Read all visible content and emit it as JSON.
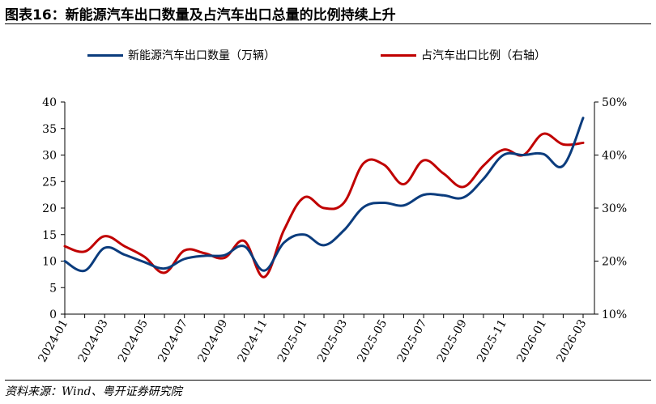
{
  "figure": {
    "title": "图表16：新能源汽车出口数量及占汽车出口总量的比例持续上升",
    "source": "资料来源：Wind、粤开证券研究院"
  },
  "colors": {
    "series_left": "#0b3c7d",
    "series_right": "#c00000"
  },
  "chart_data": {
    "type": "line",
    "title": "",
    "x": [
      "2024-01",
      "2024-02",
      "2024-03",
      "2024-04",
      "2024-05",
      "2024-06",
      "2024-07",
      "2024-08",
      "2024-09",
      "2024-10",
      "2024-11",
      "2024-12",
      "2025-01",
      "2025-02",
      "2025-03",
      "2025-04",
      "2025-05",
      "2025-06",
      "2025-07",
      "2025-08",
      "2025-09",
      "2025-10",
      "2025-11",
      "2025-12",
      "2026-01",
      "2026-02",
      "2026-03"
    ],
    "x_tick_labels": [
      "2024-01",
      "2024-03",
      "2024-05",
      "2024-07",
      "2024-09",
      "2024-11",
      "2025-01",
      "2025-03",
      "2025-05",
      "2025-07",
      "2025-09",
      "2025-11",
      "2026-01",
      "2026-03"
    ],
    "series": [
      {
        "name": "新能源汽车出口数量（万辆）",
        "axis": "left",
        "color": "#0b3c7d",
        "values": [
          10.0,
          8.2,
          12.5,
          11.2,
          9.8,
          8.6,
          10.4,
          11.0,
          11.1,
          12.8,
          8.2,
          13.5,
          15.0,
          13.0,
          15.8,
          20.2,
          21.0,
          20.5,
          22.5,
          22.4,
          22.0,
          25.5,
          30.0,
          30.0,
          30.2,
          28.0,
          37.0
        ]
      },
      {
        "name": "占汽车出口比例（右轴）",
        "axis": "right",
        "color": "#c00000",
        "values": [
          22.8,
          21.8,
          24.7,
          22.8,
          20.8,
          17.8,
          22.0,
          21.5,
          20.6,
          23.8,
          17.0,
          25.9,
          32.0,
          30.0,
          31.0,
          38.5,
          38.2,
          34.5,
          39.0,
          36.5,
          34.0,
          38.0,
          41.0,
          40.0,
          44.0,
          42.0,
          42.3
        ]
      }
    ],
    "y_left": {
      "ylim": [
        0,
        40
      ],
      "ticks": [
        "0",
        "5",
        "10",
        "15",
        "20",
        "25",
        "30",
        "35",
        "40"
      ]
    },
    "y_right": {
      "ylim": [
        10,
        50
      ],
      "ticks": [
        "10%",
        "20%",
        "30%",
        "40%",
        "50%"
      ]
    },
    "grid": false,
    "legend_position": "top-center"
  }
}
